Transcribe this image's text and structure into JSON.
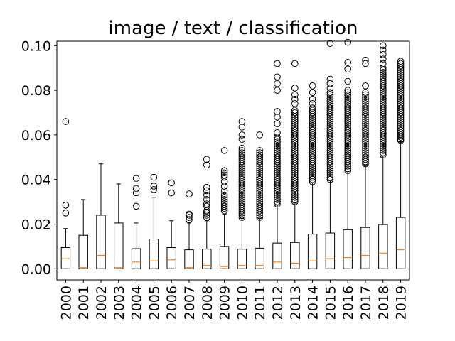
{
  "chart_data": {
    "type": "boxplot",
    "title": "image / text / classification",
    "xlabel": "",
    "ylabel": "",
    "ylim": [
      -0.005,
      0.102
    ],
    "yticks": [
      0.0,
      0.02,
      0.04,
      0.06,
      0.08,
      0.1
    ],
    "ytick_labels": [
      "0.00",
      "0.02",
      "0.04",
      "0.06",
      "0.08",
      "0.10"
    ],
    "categories": [
      "2000",
      "2001",
      "2002",
      "2003",
      "2004",
      "2005",
      "2006",
      "2007",
      "2008",
      "2009",
      "2010",
      "2011",
      "2012",
      "2013",
      "2014",
      "2015",
      "2016",
      "2017",
      "2018",
      "2019"
    ],
    "boxes": [
      {
        "q1": 0.0,
        "median": 0.0045,
        "q3": 0.0095,
        "whisker_low": 0.0,
        "whisker_high": 0.018,
        "fliers": [
          0.025,
          0.0285,
          0.066
        ]
      },
      {
        "q1": 0.0,
        "median": 0.0005,
        "q3": 0.015,
        "whisker_low": 0.0,
        "whisker_high": 0.031,
        "fliers": []
      },
      {
        "q1": 0.0,
        "median": 0.006,
        "q3": 0.024,
        "whisker_low": 0.0,
        "whisker_high": 0.047,
        "fliers": []
      },
      {
        "q1": 0.0,
        "median": 0.0005,
        "q3": 0.0205,
        "whisker_low": 0.0,
        "whisker_high": 0.038,
        "fliers": []
      },
      {
        "q1": 0.0,
        "median": 0.003,
        "q3": 0.009,
        "whisker_low": 0.0,
        "whisker_high": 0.0205,
        "fliers": [
          0.028,
          0.034,
          0.036,
          0.0405
        ]
      },
      {
        "q1": 0.0,
        "median": 0.0035,
        "q3": 0.0133,
        "whisker_low": 0.0,
        "whisker_high": 0.032,
        "fliers": [
          0.0355,
          0.037,
          0.041
        ]
      },
      {
        "q1": 0.0,
        "median": 0.004,
        "q3": 0.0095,
        "whisker_low": 0.0,
        "whisker_high": 0.0215,
        "fliers": [
          0.034,
          0.0385
        ]
      },
      {
        "q1": 0.0,
        "median": 0.0005,
        "q3": 0.0085,
        "whisker_low": 0.0,
        "whisker_high": 0.0205,
        "fliers": [
          0.022,
          0.023,
          0.024,
          0.0245,
          0.0335
        ]
      },
      {
        "q1": 0.0,
        "median": 0.0015,
        "q3": 0.0088,
        "whisker_low": 0.0,
        "whisker_high": 0.0215,
        "fliers": [
          0.023,
          0.024,
          0.025,
          0.026,
          0.028,
          0.029,
          0.031,
          0.033,
          0.035,
          0.0365,
          0.0465,
          0.049
        ]
      },
      {
        "q1": 0.0,
        "median": 0.001,
        "q3": 0.01,
        "whisker_low": 0.0,
        "whisker_high": 0.0245,
        "fliers": [
          0.026,
          0.027,
          0.028,
          0.029,
          0.03,
          0.031,
          0.032,
          0.033,
          0.035,
          0.037,
          0.039,
          0.041,
          0.042,
          0.043,
          0.044,
          0.053
        ]
      },
      {
        "q1": 0.0,
        "median": 0.0015,
        "q3": 0.0088,
        "whisker_low": 0.0,
        "whisker_high": 0.0225,
        "fliers": [
          0.023,
          0.024,
          0.025,
          0.026,
          0.027,
          0.028,
          0.029,
          0.03,
          0.031,
          0.032,
          0.033,
          0.034,
          0.035,
          0.036,
          0.037,
          0.038,
          0.039,
          0.04,
          0.041,
          0.042,
          0.043,
          0.044,
          0.045,
          0.046,
          0.047,
          0.048,
          0.049,
          0.05,
          0.051,
          0.052,
          0.053,
          0.054,
          0.058,
          0.06,
          0.0635,
          0.066
        ]
      },
      {
        "q1": 0.0,
        "median": 0.0015,
        "q3": 0.0092,
        "whisker_low": 0.0,
        "whisker_high": 0.0225,
        "fliers": [
          0.023,
          0.024,
          0.025,
          0.026,
          0.027,
          0.028,
          0.029,
          0.03,
          0.031,
          0.032,
          0.033,
          0.034,
          0.035,
          0.036,
          0.037,
          0.038,
          0.039,
          0.04,
          0.041,
          0.042,
          0.043,
          0.044,
          0.045,
          0.046,
          0.047,
          0.048,
          0.049,
          0.05,
          0.051,
          0.052,
          0.053,
          0.06
        ]
      },
      {
        "q1": 0.0,
        "median": 0.003,
        "q3": 0.0115,
        "whisker_low": 0.0,
        "whisker_high": 0.0285,
        "fliers": [
          0.029,
          0.03,
          0.031,
          0.032,
          0.033,
          0.034,
          0.035,
          0.036,
          0.037,
          0.038,
          0.039,
          0.04,
          0.041,
          0.042,
          0.043,
          0.044,
          0.045,
          0.046,
          0.047,
          0.048,
          0.049,
          0.05,
          0.051,
          0.052,
          0.053,
          0.054,
          0.055,
          0.056,
          0.057,
          0.058,
          0.059,
          0.061,
          0.065,
          0.068,
          0.0705,
          0.08,
          0.083,
          0.086,
          0.092
        ]
      },
      {
        "q1": 0.0,
        "median": 0.0025,
        "q3": 0.0118,
        "whisker_low": 0.0,
        "whisker_high": 0.0295,
        "fliers": [
          0.03,
          0.031,
          0.032,
          0.033,
          0.034,
          0.035,
          0.036,
          0.037,
          0.038,
          0.039,
          0.04,
          0.041,
          0.042,
          0.043,
          0.044,
          0.045,
          0.046,
          0.047,
          0.048,
          0.049,
          0.05,
          0.051,
          0.052,
          0.053,
          0.054,
          0.055,
          0.056,
          0.057,
          0.058,
          0.059,
          0.06,
          0.061,
          0.062,
          0.063,
          0.064,
          0.065,
          0.066,
          0.067,
          0.068,
          0.069,
          0.07,
          0.071,
          0.074,
          0.076,
          0.078,
          0.081,
          0.092
        ]
      },
      {
        "q1": 0.0,
        "median": 0.0035,
        "q3": 0.0155,
        "whisker_low": 0.0,
        "whisker_high": 0.0385,
        "fliers": [
          0.039,
          0.04,
          0.041,
          0.042,
          0.043,
          0.044,
          0.045,
          0.046,
          0.047,
          0.048,
          0.049,
          0.05,
          0.051,
          0.052,
          0.053,
          0.054,
          0.055,
          0.056,
          0.057,
          0.058,
          0.059,
          0.06,
          0.061,
          0.062,
          0.063,
          0.064,
          0.065,
          0.066,
          0.067,
          0.068,
          0.069,
          0.07,
          0.071,
          0.072,
          0.074,
          0.076,
          0.079,
          0.082
        ]
      },
      {
        "q1": 0.0,
        "median": 0.0045,
        "q3": 0.016,
        "whisker_low": 0.0,
        "whisker_high": 0.0395,
        "fliers": [
          0.04,
          0.041,
          0.042,
          0.043,
          0.044,
          0.045,
          0.046,
          0.047,
          0.048,
          0.049,
          0.05,
          0.051,
          0.052,
          0.053,
          0.054,
          0.055,
          0.056,
          0.057,
          0.058,
          0.059,
          0.06,
          0.061,
          0.062,
          0.063,
          0.064,
          0.065,
          0.066,
          0.067,
          0.068,
          0.069,
          0.07,
          0.071,
          0.072,
          0.073,
          0.074,
          0.075,
          0.076,
          0.077,
          0.078,
          0.079,
          0.081,
          0.083,
          0.085,
          0.101
        ]
      },
      {
        "q1": 0.0,
        "median": 0.005,
        "q3": 0.0175,
        "whisker_low": 0.0,
        "whisker_high": 0.0435,
        "fliers": [
          0.044,
          0.045,
          0.046,
          0.047,
          0.048,
          0.049,
          0.05,
          0.051,
          0.052,
          0.053,
          0.054,
          0.055,
          0.056,
          0.057,
          0.058,
          0.059,
          0.06,
          0.061,
          0.062,
          0.063,
          0.064,
          0.065,
          0.066,
          0.067,
          0.068,
          0.069,
          0.07,
          0.071,
          0.072,
          0.073,
          0.074,
          0.075,
          0.076,
          0.077,
          0.078,
          0.079,
          0.08,
          0.084,
          0.0895,
          0.0925,
          0.1015
        ]
      },
      {
        "q1": 0.0,
        "median": 0.006,
        "q3": 0.0185,
        "whisker_low": 0.0,
        "whisker_high": 0.0465,
        "fliers": [
          0.047,
          0.048,
          0.049,
          0.05,
          0.051,
          0.052,
          0.053,
          0.054,
          0.055,
          0.056,
          0.057,
          0.058,
          0.059,
          0.06,
          0.061,
          0.062,
          0.063,
          0.064,
          0.065,
          0.066,
          0.067,
          0.068,
          0.069,
          0.07,
          0.071,
          0.072,
          0.073,
          0.074,
          0.075,
          0.076,
          0.077,
          0.078,
          0.079,
          0.082,
          0.092,
          0.0935
        ]
      },
      {
        "q1": 0.0,
        "median": 0.007,
        "q3": 0.0198,
        "whisker_low": 0.0,
        "whisker_high": 0.0505,
        "fliers": [
          0.051,
          0.052,
          0.053,
          0.054,
          0.055,
          0.056,
          0.057,
          0.058,
          0.059,
          0.06,
          0.061,
          0.062,
          0.063,
          0.064,
          0.065,
          0.066,
          0.067,
          0.068,
          0.069,
          0.07,
          0.071,
          0.072,
          0.073,
          0.074,
          0.075,
          0.076,
          0.077,
          0.078,
          0.079,
          0.08,
          0.081,
          0.082,
          0.083,
          0.084,
          0.085,
          0.086,
          0.087,
          0.088,
          0.089,
          0.09,
          0.092,
          0.094,
          0.096,
          0.098,
          0.1
        ]
      },
      {
        "q1": 0.0,
        "median": 0.0085,
        "q3": 0.023,
        "whisker_low": 0.0,
        "whisker_high": 0.057,
        "fliers": [
          0.0575,
          0.058,
          0.059,
          0.06,
          0.061,
          0.062,
          0.063,
          0.064,
          0.065,
          0.066,
          0.067,
          0.068,
          0.069,
          0.07,
          0.071,
          0.072,
          0.073,
          0.074,
          0.075,
          0.076,
          0.077,
          0.078,
          0.079,
          0.08,
          0.081,
          0.082,
          0.083,
          0.084,
          0.085,
          0.086,
          0.087,
          0.088,
          0.089,
          0.09,
          0.091,
          0.092,
          0.093
        ]
      }
    ]
  }
}
